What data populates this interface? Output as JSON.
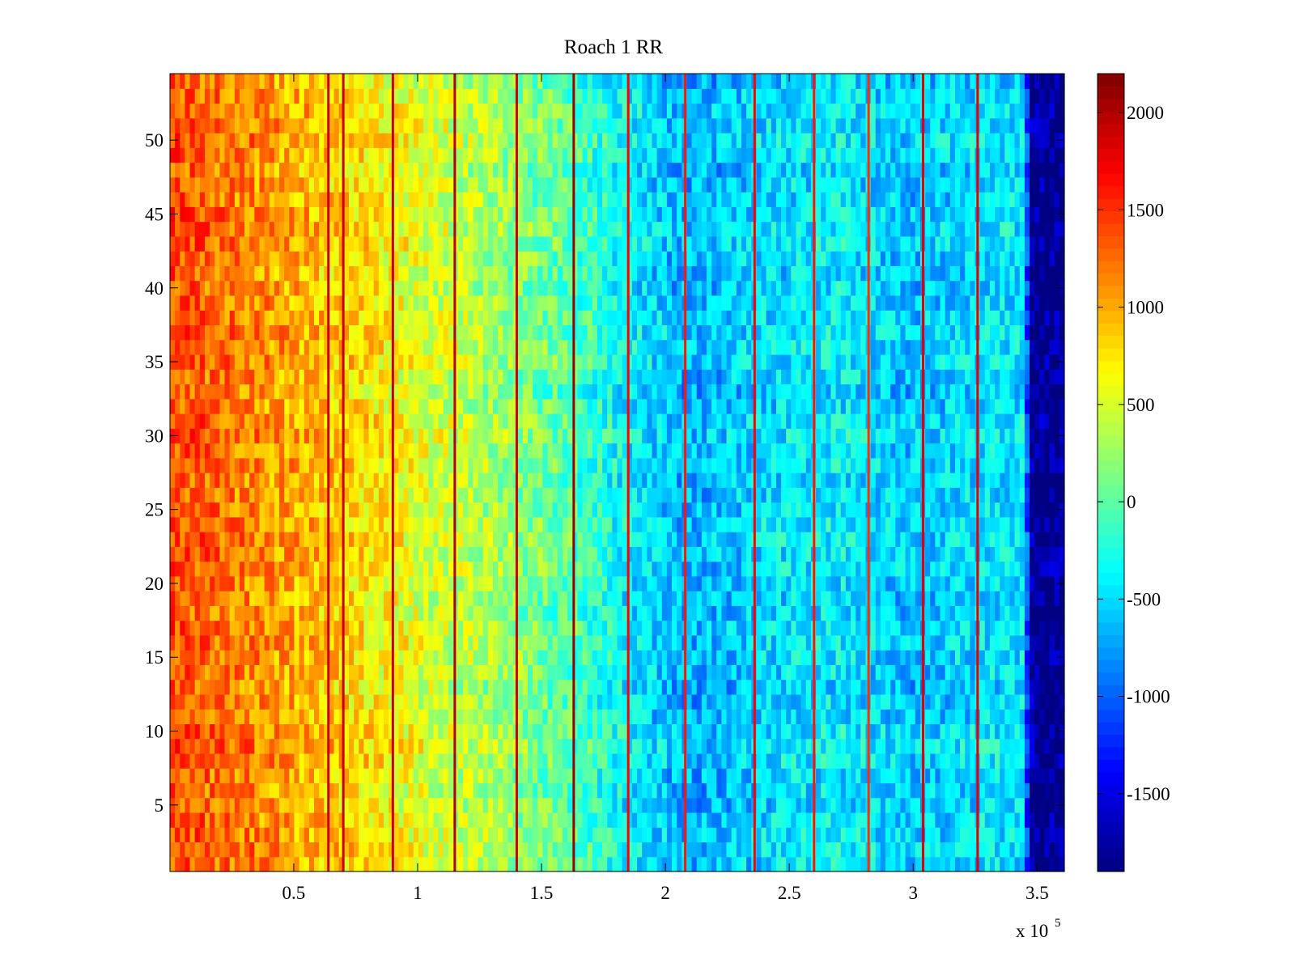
{
  "chart_data": {
    "type": "heatmap",
    "title": "Roach 1 RR",
    "xlabel": "",
    "ylabel": "",
    "x_exponent_label": "x 10",
    "x_exponent_power": "5",
    "xlim": [
      0.5,
      3610
    ],
    "ylim": [
      0.5,
      54.5
    ],
    "x_ticks": [
      {
        "value": 500,
        "label": "0.5"
      },
      {
        "value": 1000,
        "label": "1"
      },
      {
        "value": 1500,
        "label": "1.5"
      },
      {
        "value": 2000,
        "label": "2"
      },
      {
        "value": 2500,
        "label": "2.5"
      },
      {
        "value": 3000,
        "label": "3"
      },
      {
        "value": 3500,
        "label": "3.5"
      }
    ],
    "y_ticks": [
      {
        "value": 5,
        "label": "5"
      },
      {
        "value": 10,
        "label": "10"
      },
      {
        "value": 15,
        "label": "15"
      },
      {
        "value": 20,
        "label": "20"
      },
      {
        "value": 25,
        "label": "25"
      },
      {
        "value": 30,
        "label": "30"
      },
      {
        "value": 35,
        "label": "35"
      },
      {
        "value": 40,
        "label": "40"
      },
      {
        "value": 45,
        "label": "45"
      },
      {
        "value": 50,
        "label": "50"
      }
    ],
    "x_unit_scale": 100,
    "rows": 54,
    "column_bins": 180,
    "mean_value_profile": {
      "x": [
        0,
        200,
        500,
        800,
        1000,
        1300,
        1600,
        1850,
        2100,
        2400,
        2700,
        3000,
        3300,
        3450,
        3470,
        3610
      ],
      "values": [
        1400,
        1250,
        1000,
        750,
        550,
        300,
        0,
        -400,
        -700,
        -500,
        -400,
        -600,
        -450,
        -450,
        -1800,
        -1850
      ]
    },
    "value_noise_amplitude": 350,
    "vertical_streaks": [
      {
        "x": 640,
        "value": 1900
      },
      {
        "x": 700,
        "value": 1900
      },
      {
        "x": 900,
        "value": 1900
      },
      {
        "x": 1150,
        "value": 2000
      },
      {
        "x": 1400,
        "value": 1900
      },
      {
        "x": 1630,
        "value": 2100
      },
      {
        "x": 1850,
        "value": 1700
      },
      {
        "x": 2080,
        "value": 1600
      },
      {
        "x": 2360,
        "value": 1700
      },
      {
        "x": 2600,
        "value": 1600
      },
      {
        "x": 2820,
        "value": 1500
      },
      {
        "x": 3040,
        "value": 1800
      },
      {
        "x": 3260,
        "value": 1800
      }
    ],
    "colorbar": {
      "colormap": "jet",
      "clim": [
        -1900,
        2200
      ],
      "ticks": [
        {
          "value": 2000,
          "label": "2000"
        },
        {
          "value": 1500,
          "label": "1500"
        },
        {
          "value": 1000,
          "label": "1000"
        },
        {
          "value": 500,
          "label": "500"
        },
        {
          "value": 0,
          "label": "0"
        },
        {
          "value": -500,
          "label": "-500"
        },
        {
          "value": -1000,
          "label": "-1000"
        },
        {
          "value": -1500,
          "label": "-1500"
        }
      ]
    }
  }
}
